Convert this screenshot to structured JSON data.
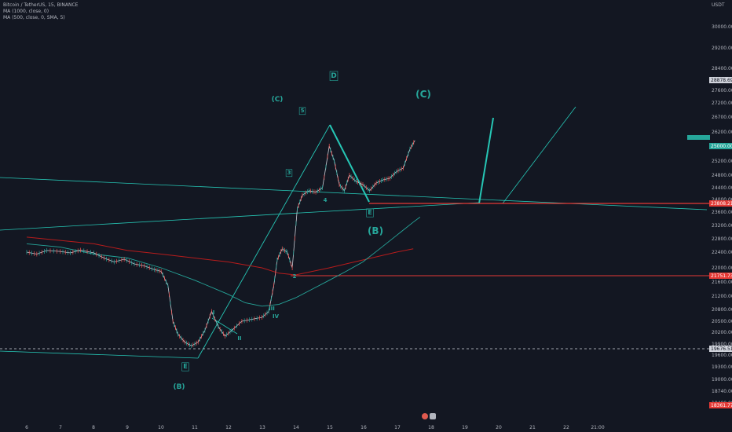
{
  "legend": {
    "symbol": "Bitcoin / TetherUS, 15, BINANCE",
    "ma1": "MA (1000, close, 0)",
    "ma2": "MA (500, close, 0, SMA, 5)"
  },
  "currency": "USDT",
  "chart_data": {
    "type": "line",
    "symbol": "Bitcoin / TetherUS",
    "interval": "15",
    "exchange": "BINANCE",
    "y_axis": {
      "ticks": [
        30000,
        29200,
        28400,
        27600,
        27200,
        26700,
        26200,
        25700,
        25200,
        24800,
        24400,
        24000,
        23600,
        23200,
        22800,
        22400,
        22000,
        21600,
        21200,
        20800,
        20500,
        20200,
        19900,
        19600,
        19300,
        19000,
        18740,
        18400
      ]
    },
    "x_axis": {
      "ticks": [
        "6",
        "7",
        "8",
        "9",
        "10",
        "11",
        "12",
        "13",
        "14",
        "15",
        "16",
        "17",
        "18",
        "19",
        "20",
        "21",
        "22",
        "21:00"
      ]
    },
    "price_labels": {
      "current": "25000.00",
      "top": "28878.69",
      "level_a": "23808.21",
      "level_b": "21751.73",
      "level_c": "19676.51",
      "bottom": "18361.77"
    },
    "wave_labels": [
      "(C)",
      "5",
      "3",
      "4",
      "D",
      "(C)",
      "E",
      "(B)",
      "2",
      "IV",
      "III",
      "II",
      "I",
      "E",
      "(B)"
    ],
    "series_price": [
      [
        6.0,
        22400
      ],
      [
        6.3,
        22350
      ],
      [
        6.6,
        22450
      ],
      [
        7.0,
        22420
      ],
      [
        7.3,
        22380
      ],
      [
        7.6,
        22460
      ],
      [
        8.0,
        22380
      ],
      [
        8.3,
        22250
      ],
      [
        8.6,
        22150
      ],
      [
        8.9,
        22220
      ],
      [
        9.2,
        22100
      ],
      [
        9.5,
        22050
      ],
      [
        9.8,
        21950
      ],
      [
        10.0,
        21900
      ],
      [
        10.2,
        21500
      ],
      [
        10.35,
        20500
      ],
      [
        10.5,
        20150
      ],
      [
        10.7,
        19950
      ],
      [
        10.9,
        19850
      ],
      [
        11.1,
        19950
      ],
      [
        11.3,
        20250
      ],
      [
        11.5,
        20750
      ],
      [
        11.7,
        20350
      ],
      [
        11.9,
        20100
      ],
      [
        12.1,
        20250
      ],
      [
        12.4,
        20500
      ],
      [
        12.7,
        20550
      ],
      [
        13.0,
        20600
      ],
      [
        13.2,
        20750
      ],
      [
        13.35,
        21500
      ],
      [
        13.45,
        22200
      ],
      [
        13.6,
        22500
      ],
      [
        13.75,
        22400
      ],
      [
        13.9,
        22000
      ],
      [
        14.05,
        23700
      ],
      [
        14.2,
        24150
      ],
      [
        14.4,
        24300
      ],
      [
        14.6,
        24250
      ],
      [
        14.8,
        24400
      ],
      [
        15.0,
        25700
      ],
      [
        15.15,
        25200
      ],
      [
        15.3,
        24500
      ],
      [
        15.45,
        24300
      ],
      [
        15.6,
        24800
      ],
      [
        15.8,
        24600
      ],
      [
        16.0,
        24500
      ],
      [
        16.2,
        24300
      ],
      [
        16.4,
        24550
      ],
      [
        16.6,
        24650
      ],
      [
        16.8,
        24700
      ],
      [
        17.0,
        24900
      ],
      [
        17.2,
        25000
      ],
      [
        17.4,
        25600
      ],
      [
        17.55,
        25900
      ]
    ],
    "series_ma1000": [
      [
        6.0,
        22850
      ],
      [
        7.0,
        22750
      ],
      [
        8.0,
        22650
      ],
      [
        9.0,
        22450
      ],
      [
        10.0,
        22350
      ],
      [
        11.0,
        22250
      ],
      [
        12.0,
        22150
      ],
      [
        13.0,
        22000
      ],
      [
        13.5,
        21850
      ],
      [
        14.0,
        21800
      ],
      [
        14.5,
        21900
      ],
      [
        15.0,
        22000
      ],
      [
        15.5,
        22100
      ],
      [
        16.0,
        22200
      ],
      [
        16.5,
        22300
      ],
      [
        17.0,
        22400
      ],
      [
        17.5,
        22500
      ]
    ],
    "series_ma500": [
      [
        6.0,
        22650
      ],
      [
        7.0,
        22550
      ],
      [
        8.0,
        22350
      ],
      [
        9.0,
        22250
      ],
      [
        10.0,
        22000
      ],
      [
        11.0,
        21650
      ],
      [
        12.0,
        21250
      ],
      [
        12.5,
        21000
      ],
      [
        13.0,
        20900
      ],
      [
        13.5,
        20950
      ],
      [
        14.0,
        21150
      ],
      [
        14.5,
        21400
      ],
      [
        15.0,
        21650
      ],
      [
        15.5,
        21900
      ],
      [
        16.0,
        22150
      ],
      [
        16.5,
        22500
      ],
      [
        17.0,
        22900
      ],
      [
        17.5,
        23300
      ],
      [
        17.7,
        23450
      ]
    ],
    "grid": false,
    "legend_position": "top-left"
  }
}
